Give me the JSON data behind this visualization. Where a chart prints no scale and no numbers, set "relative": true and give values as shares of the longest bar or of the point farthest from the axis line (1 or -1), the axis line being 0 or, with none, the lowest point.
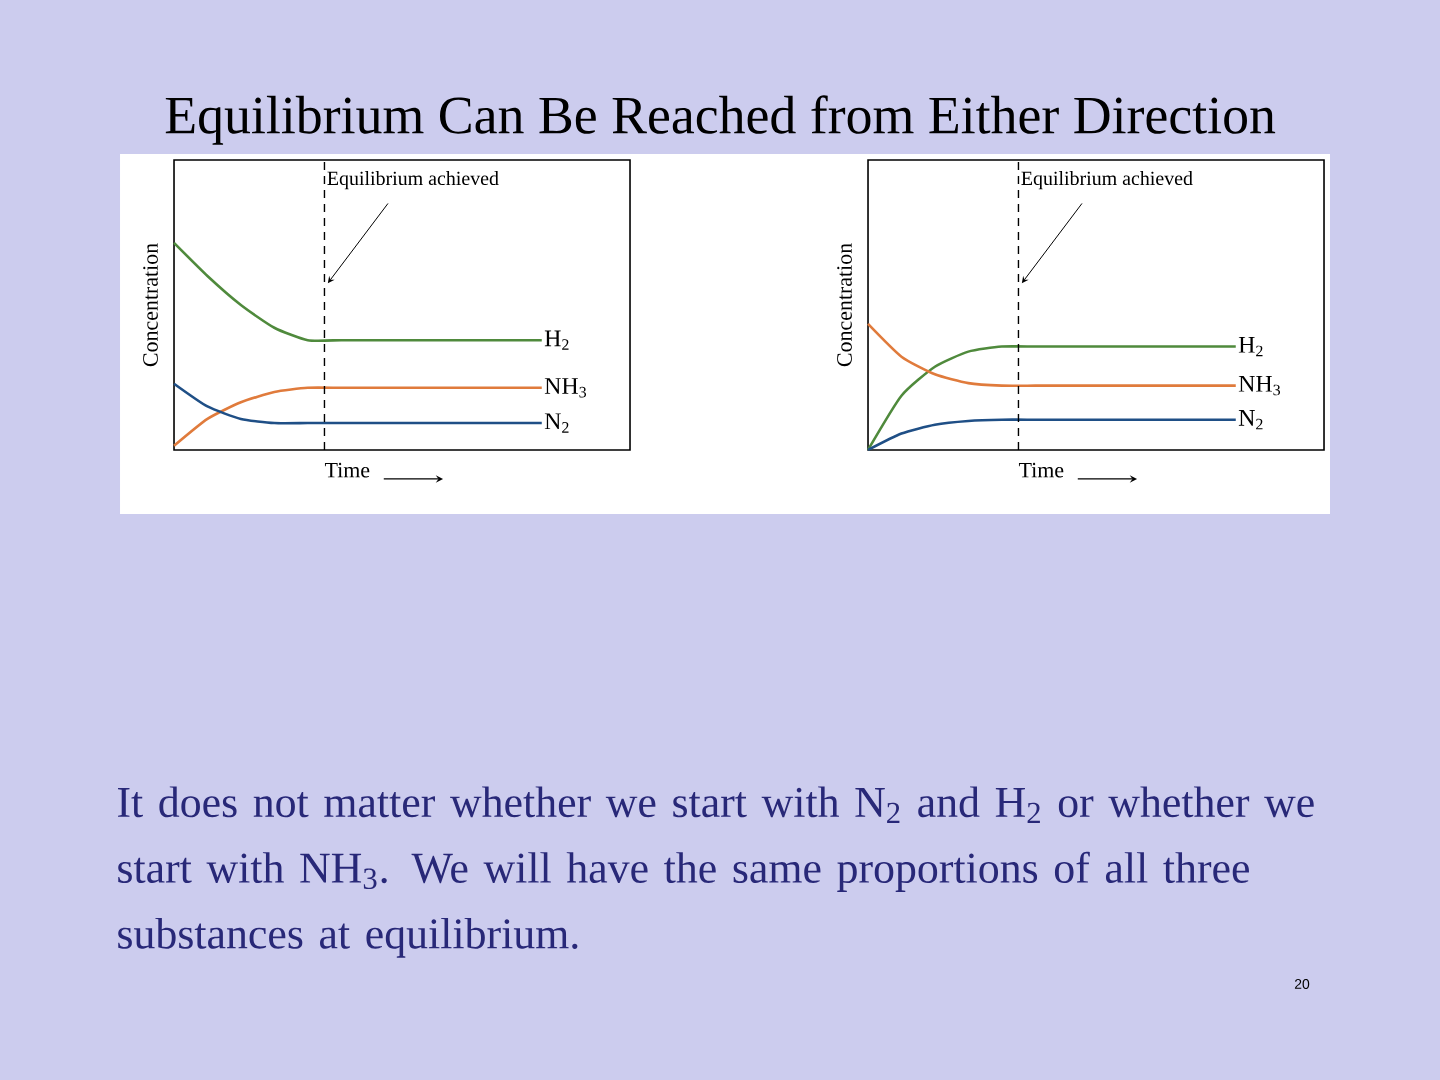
{
  "chart_data": [
    {
      "type": "line",
      "title": "Equilibrium Can Be Reached from Either Direction",
      "xlabel": "Time",
      "ylabel": "Concentration",
      "relative": true,
      "categories": [
        null,
        null,
        null,
        null,
        null,
        null,
        null,
        null,
        null,
        null,
        null,
        null
      ],
      "series": [
        {
          "name": "H$_{2}$",
          "color": "#4f8a3c",
          "values": [
            1.0,
            0.84,
            0.7,
            0.59,
            0.53,
            0.53,
            0.53,
            0.53,
            0.53,
            0.53,
            0.53,
            0.53
          ]
        },
        {
          "name": "NH$_{3}$",
          "color": "#e07b3c",
          "values": [
            0.02,
            0.15,
            0.23,
            0.28,
            0.3,
            0.3,
            0.3,
            0.3,
            0.3,
            0.3,
            0.3,
            0.3
          ]
        },
        {
          "name": "N$_{2}$",
          "color": "#1f4f86",
          "values": [
            0.32,
            0.21,
            0.15,
            0.13,
            0.13,
            0.13,
            0.13,
            0.13,
            0.13,
            0.13,
            0.13,
            0.13
          ]
        }
      ],
      "annotations": [
        "Equilibrium achieved"
      ]
    },
    {
      "type": "line",
      "xlabel": "Time",
      "ylabel": "Concentration",
      "relative": true,
      "categories": [
        null,
        null,
        null,
        null,
        null,
        null,
        null,
        null,
        null,
        null,
        null,
        null
      ],
      "series": [
        {
          "name": "H$_{2}$",
          "color": "#4f8a3c",
          "values": [
            0,
            0.43,
            0.66,
            0.78,
            0.82,
            0.82,
            0.82,
            0.82,
            0.82,
            0.82,
            0.82,
            0.82
          ]
        },
        {
          "name": "NH$_{3}$",
          "color": "#e07b3c",
          "values": [
            1.0,
            0.74,
            0.6,
            0.53,
            0.51,
            0.51,
            0.51,
            0.51,
            0.51,
            0.51,
            0.51,
            0.51
          ]
        },
        {
          "name": "N$_{2}$",
          "color": "#1f4f86",
          "values": [
            0,
            0.13,
            0.2,
            0.23,
            0.24,
            0.24,
            0.24,
            0.24,
            0.24,
            0.24,
            0.24,
            0.24
          ]
        }
      ],
      "annotations": [
        "Equilibrium achieved",
        "It does not matter whether we start with N$_{2}$ and H$_{2}$ or whether we start with NH$_{3}$.  We will have the same proportions of all three substances at equilibrium.",
        "20"
      ]
    }
  ]
}
